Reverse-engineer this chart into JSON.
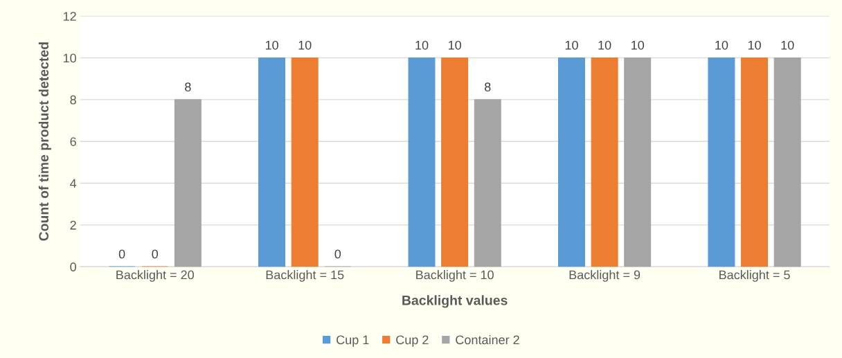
{
  "chart_data": {
    "type": "bar",
    "xlabel": "Backlight values",
    "ylabel": "Count of time product detected",
    "categories": [
      "Backlight = 20",
      "Backlight = 15",
      "Backlight = 10",
      "Backlight = 9",
      "Backlight = 5"
    ],
    "series": [
      {
        "name": "Cup 1",
        "color": "#5b9bd5",
        "values": [
          0,
          10,
          10,
          10,
          10
        ]
      },
      {
        "name": "Cup 2",
        "color": "#ed7d31",
        "values": [
          0,
          10,
          10,
          10,
          10
        ]
      },
      {
        "name": "Container 2",
        "color": "#a5a5a5",
        "values": [
          8,
          0,
          8,
          10,
          10
        ]
      }
    ],
    "ylim": [
      0,
      12
    ],
    "yticks": [
      0,
      2,
      4,
      6,
      8,
      10,
      12
    ],
    "grid": "y",
    "legend": "bottom",
    "data_labels": true
  }
}
